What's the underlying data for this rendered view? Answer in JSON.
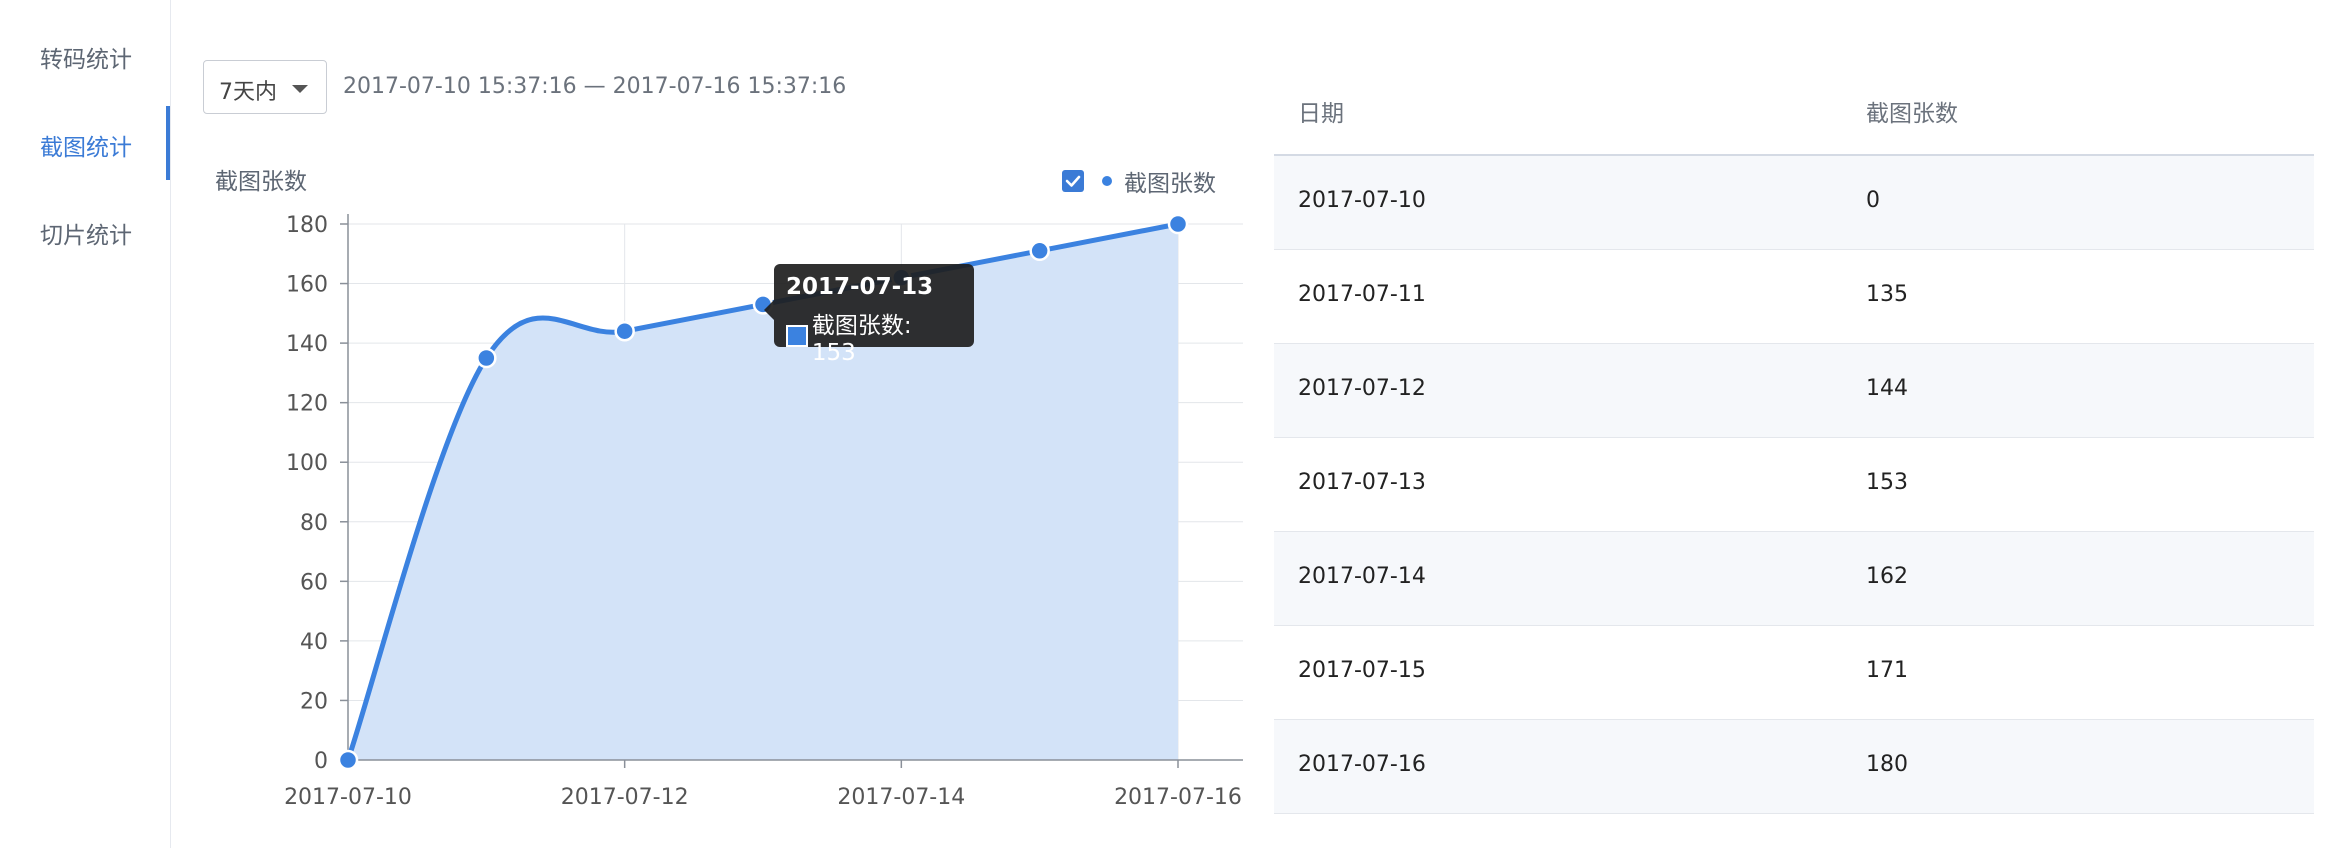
{
  "sidebar": {
    "items": [
      {
        "label": "转码统计",
        "active": false
      },
      {
        "label": "截图统计",
        "active": true
      },
      {
        "label": "切片统计",
        "active": false
      }
    ],
    "accent_color": "#3b7bd6"
  },
  "toolbar": {
    "range_select_value": "7天内",
    "date_range_text": "2017-07-10 15:37:16 — 2017-07-16 15:37:16"
  },
  "chart_panel": {
    "legend_checked": true
  },
  "chart_data": {
    "type": "area",
    "title": "截图张数",
    "x": [
      "2017-07-10",
      "2017-07-11",
      "2017-07-12",
      "2017-07-13",
      "2017-07-14",
      "2017-07-15",
      "2017-07-16"
    ],
    "x_tick_labels": [
      "2017-07-10",
      "2017-07-12",
      "2017-07-14",
      "2017-07-16"
    ],
    "series": [
      {
        "name": "截图张数",
        "values": [
          0,
          135,
          144,
          153,
          162,
          171,
          180
        ],
        "color": "#3b82e0",
        "fill": "#d3e3f8"
      }
    ],
    "ylim": [
      0,
      180
    ],
    "y_ticks": [
      0,
      20,
      40,
      60,
      80,
      100,
      120,
      140,
      160,
      180
    ],
    "grid": true,
    "legend_position": "top-right",
    "smooth": true
  },
  "tooltip": {
    "date": "2017-07-13",
    "series_label": "截图张数: 153"
  },
  "table": {
    "headers": [
      "日期",
      "截图张数"
    ],
    "rows": [
      [
        "2017-07-10",
        "0"
      ],
      [
        "2017-07-11",
        "135"
      ],
      [
        "2017-07-12",
        "144"
      ],
      [
        "2017-07-13",
        "153"
      ],
      [
        "2017-07-14",
        "162"
      ],
      [
        "2017-07-15",
        "171"
      ],
      [
        "2017-07-16",
        "180"
      ]
    ]
  }
}
